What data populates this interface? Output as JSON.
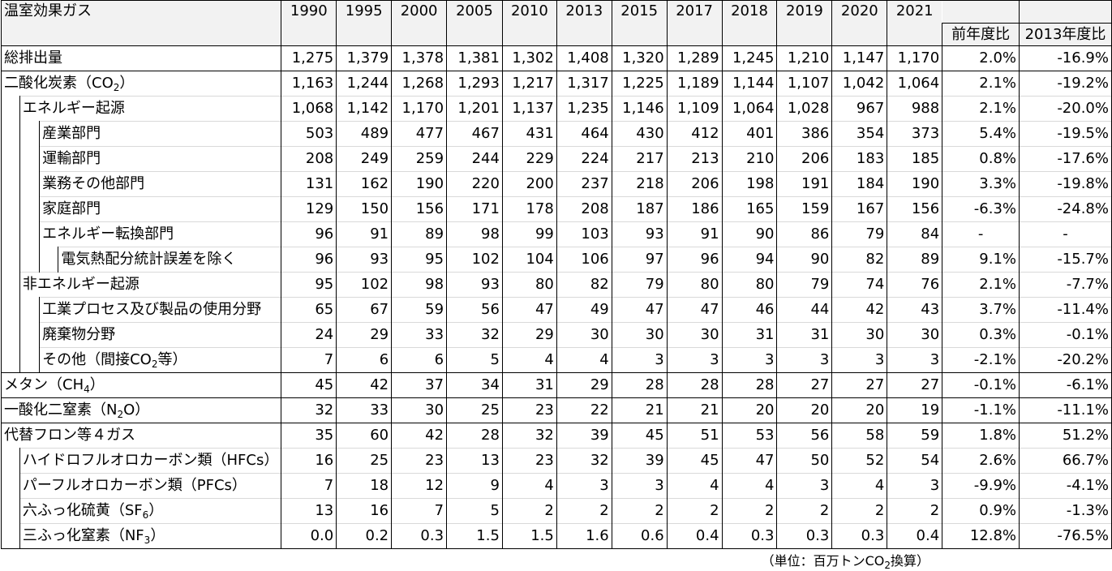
{
  "header": {
    "title": "温室効果ガス",
    "years": [
      "1990",
      "1995",
      "2000",
      "2005",
      "2010",
      "2013",
      "2015",
      "2017",
      "2018",
      "2019",
      "2020",
      "2021"
    ],
    "comparisons": [
      "前年度比",
      "2013年度比"
    ]
  },
  "rows": [
    {
      "label": "総排出量",
      "values": [
        "1,275",
        "1,379",
        "1,378",
        "1,381",
        "1,302",
        "1,408",
        "1,320",
        "1,289",
        "1,245",
        "1,210",
        "1,147",
        "1,170"
      ],
      "yoy": "2.0%",
      "vs2013": "-16.9%"
    },
    {
      "label": "二酸化炭素（CO",
      "label_sub": "2",
      "label_after": "）",
      "values": [
        "1,163",
        "1,244",
        "1,268",
        "1,293",
        "1,217",
        "1,317",
        "1,225",
        "1,189",
        "1,144",
        "1,107",
        "1,042",
        "1,064"
      ],
      "yoy": "2.1%",
      "vs2013": "-19.2%"
    },
    {
      "label": "エネルギー起源",
      "values": [
        "1,068",
        "1,142",
        "1,170",
        "1,201",
        "1,137",
        "1,235",
        "1,146",
        "1,109",
        "1,064",
        "1,028",
        "967",
        "988"
      ],
      "yoy": "2.1%",
      "vs2013": "-20.0%"
    },
    {
      "label": "産業部門",
      "values": [
        "503",
        "489",
        "477",
        "467",
        "431",
        "464",
        "430",
        "412",
        "401",
        "386",
        "354",
        "373"
      ],
      "yoy": "5.4%",
      "vs2013": "-19.5%"
    },
    {
      "label": "運輸部門",
      "values": [
        "208",
        "249",
        "259",
        "244",
        "229",
        "224",
        "217",
        "213",
        "210",
        "206",
        "183",
        "185"
      ],
      "yoy": "0.8%",
      "vs2013": "-17.6%"
    },
    {
      "label": "業務その他部門",
      "values": [
        "131",
        "162",
        "190",
        "220",
        "200",
        "237",
        "218",
        "206",
        "198",
        "191",
        "184",
        "190"
      ],
      "yoy": "3.3%",
      "vs2013": "-19.8%"
    },
    {
      "label": "家庭部門",
      "values": [
        "129",
        "150",
        "156",
        "171",
        "178",
        "208",
        "187",
        "186",
        "165",
        "159",
        "167",
        "156"
      ],
      "yoy": "-6.3%",
      "vs2013": "-24.8%"
    },
    {
      "label": "エネルギー転換部門",
      "values": [
        "96",
        "91",
        "89",
        "98",
        "99",
        "103",
        "93",
        "91",
        "90",
        "86",
        "79",
        "84"
      ],
      "yoy": "-",
      "vs2013": "-"
    },
    {
      "label": "電気熱配分統計誤差を除く",
      "values": [
        "96",
        "93",
        "95",
        "102",
        "104",
        "106",
        "97",
        "96",
        "94",
        "90",
        "82",
        "89"
      ],
      "yoy": "9.1%",
      "vs2013": "-15.7%"
    },
    {
      "label": "非エネルギー起源",
      "values": [
        "95",
        "102",
        "98",
        "93",
        "80",
        "82",
        "79",
        "80",
        "80",
        "79",
        "74",
        "76"
      ],
      "yoy": "2.1%",
      "vs2013": "-7.7%"
    },
    {
      "label": "工業プロセス及び製品の使用分野",
      "values": [
        "65",
        "67",
        "59",
        "56",
        "47",
        "49",
        "47",
        "47",
        "46",
        "44",
        "42",
        "43"
      ],
      "yoy": "3.7%",
      "vs2013": "-11.4%"
    },
    {
      "label": "廃棄物分野",
      "values": [
        "24",
        "29",
        "33",
        "32",
        "29",
        "30",
        "30",
        "30",
        "31",
        "31",
        "30",
        "30"
      ],
      "yoy": "0.3%",
      "vs2013": "-0.1%"
    },
    {
      "label": "その他（間接CO",
      "label_sub": "2",
      "label_after": "等）",
      "values": [
        "7",
        "6",
        "6",
        "5",
        "4",
        "4",
        "3",
        "3",
        "3",
        "3",
        "3",
        "3"
      ],
      "yoy": "-2.1%",
      "vs2013": "-20.2%"
    },
    {
      "label": "メタン（CH",
      "label_sub": "4",
      "label_after": "）",
      "values": [
        "45",
        "42",
        "37",
        "34",
        "31",
        "29",
        "28",
        "28",
        "28",
        "27",
        "27",
        "27"
      ],
      "yoy": "-0.1%",
      "vs2013": "-6.1%"
    },
    {
      "label": "一酸化二窒素（N",
      "label_sub": "2",
      "label_after": "O）",
      "values": [
        "32",
        "33",
        "30",
        "25",
        "23",
        "22",
        "21",
        "21",
        "20",
        "20",
        "20",
        "19"
      ],
      "yoy": "-1.1%",
      "vs2013": "-11.1%"
    },
    {
      "label": "代替フロン等４ガス",
      "values": [
        "35",
        "60",
        "42",
        "28",
        "32",
        "39",
        "45",
        "51",
        "53",
        "56",
        "58",
        "59"
      ],
      "yoy": "1.8%",
      "vs2013": "51.2%"
    },
    {
      "label": "ハイドロフルオロカーボン類（HFCs）",
      "values": [
        "16",
        "25",
        "23",
        "13",
        "23",
        "32",
        "39",
        "45",
        "47",
        "50",
        "52",
        "54"
      ],
      "yoy": "2.6%",
      "vs2013": "66.7%"
    },
    {
      "label": "パーフルオロカーボン類（PFCs）",
      "values": [
        "7",
        "18",
        "12",
        "9",
        "4",
        "3",
        "3",
        "4",
        "4",
        "3",
        "4",
        "3"
      ],
      "yoy": "-9.9%",
      "vs2013": "-4.1%"
    },
    {
      "label": "六ふっ化硫黄（SF",
      "label_sub": "6",
      "label_after": "）",
      "values": [
        "13",
        "16",
        "7",
        "5",
        "2",
        "2",
        "2",
        "2",
        "2",
        "2",
        "2",
        "2"
      ],
      "yoy": "0.9%",
      "vs2013": "-1.3%"
    },
    {
      "label": "三ふっ化窒素（NF",
      "label_sub": "3",
      "label_after": "）",
      "values": [
        "0.0",
        "0.2",
        "0.3",
        "1.5",
        "1.5",
        "1.6",
        "0.6",
        "0.4",
        "0.3",
        "0.3",
        "0.3",
        "0.4"
      ],
      "yoy": "12.8%",
      "vs2013": "-76.5%"
    }
  ],
  "footer": {
    "unit_before": "（単位：百万トンCO",
    "unit_sub": "2",
    "unit_after": "換算）"
  }
}
